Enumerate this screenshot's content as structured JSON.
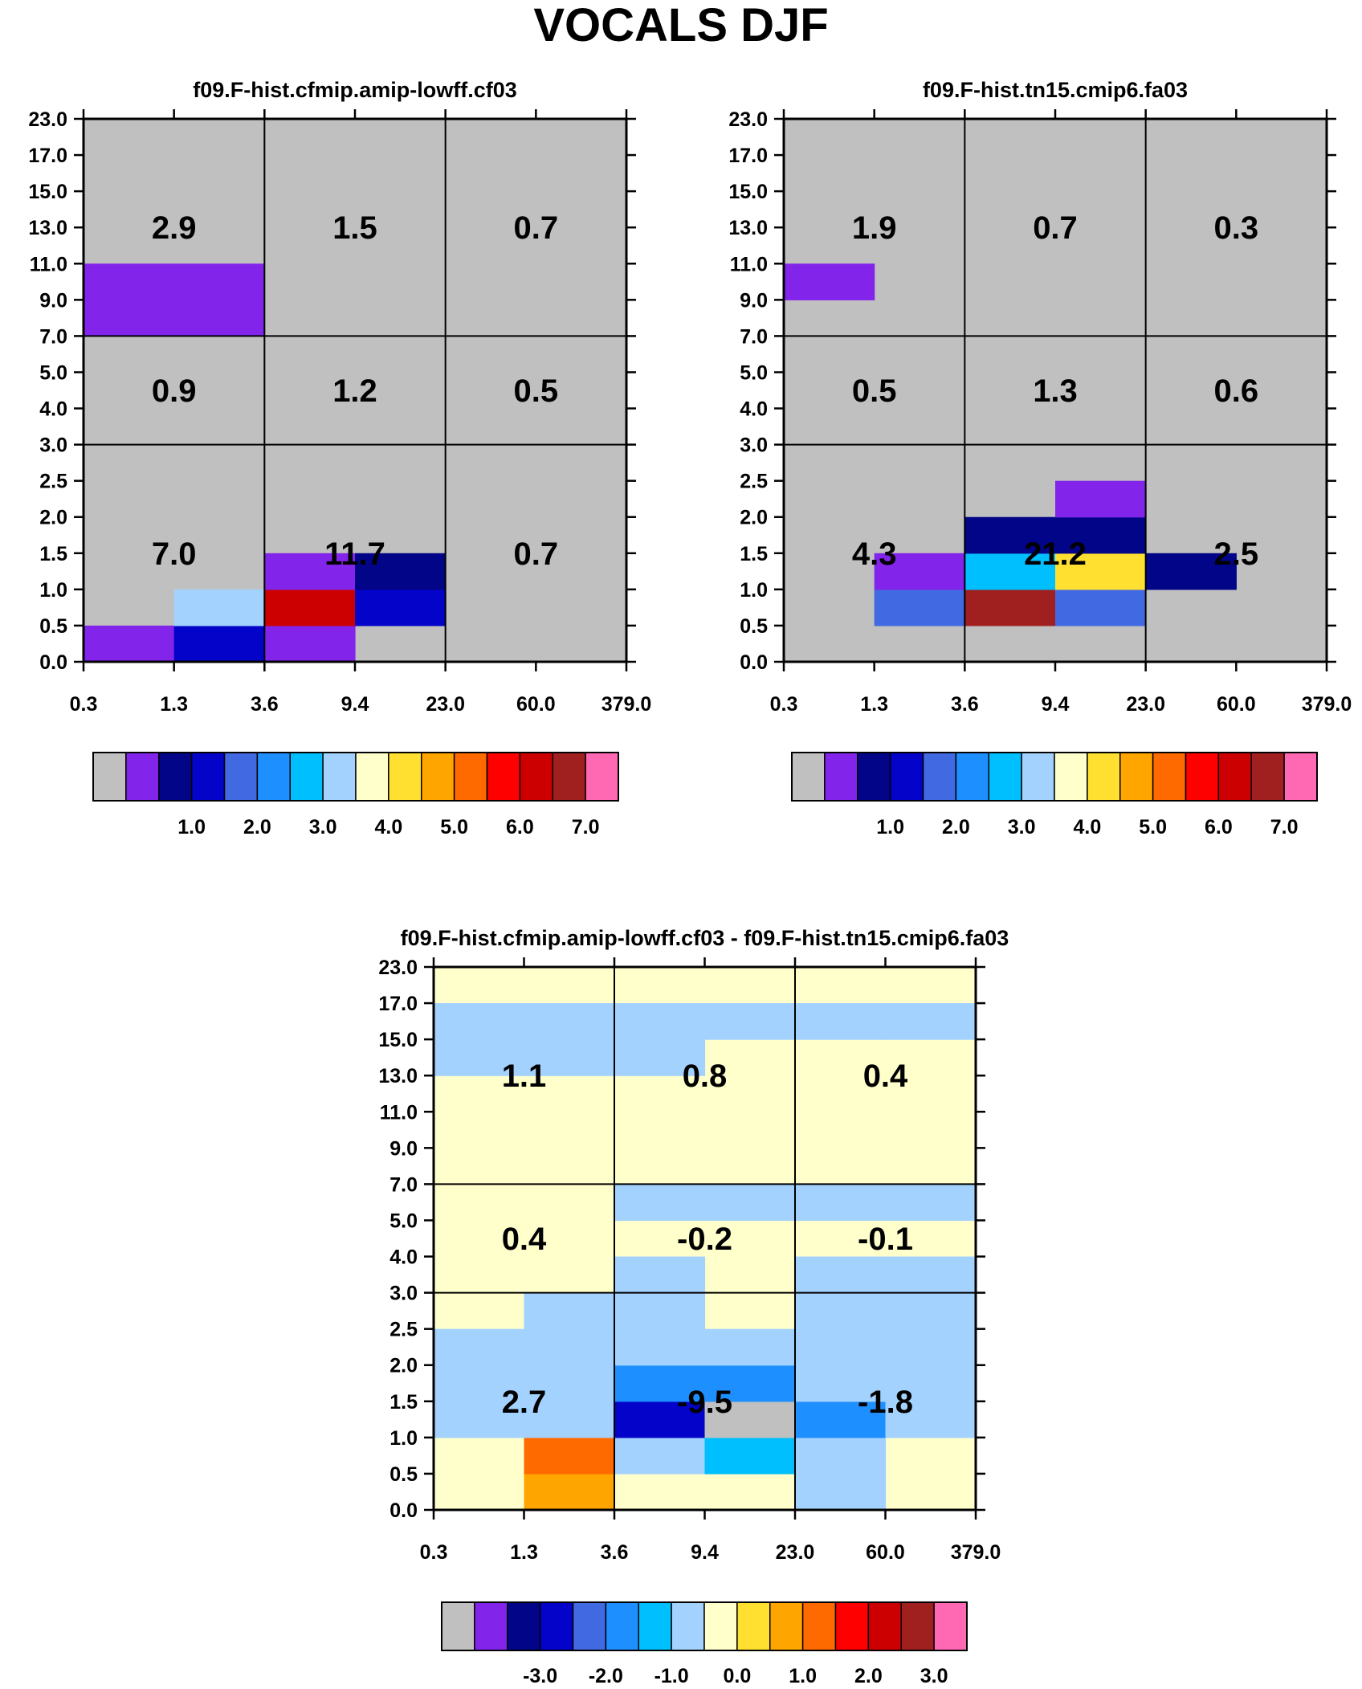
{
  "figure": {
    "title": "VOCALS DJF"
  },
  "axes": {
    "x_ticks": [
      "0.3",
      "1.3",
      "3.6",
      "9.4",
      "23.0",
      "60.0",
      "379.0"
    ],
    "y_ticks": [
      "0.0",
      "0.5",
      "1.0",
      "1.5",
      "2.0",
      "2.5",
      "3.0",
      "4.0",
      "5.0",
      "7.0",
      "9.0",
      "11.0",
      "13.0",
      "15.0",
      "17.0",
      "23.0"
    ]
  },
  "colors": {
    "missing": "#c0c0c0",
    "palette": [
      "#c0c0c0",
      "#8224ea",
      "#020587",
      "#0303c9",
      "#4169e1",
      "#1e8fff",
      "#00bfff",
      "#a3d2ff",
      "#ffffcc",
      "#ffe030",
      "#ffa500",
      "#ff6a00",
      "#ff0000",
      "#cc0000",
      "#a02020",
      "#ff69b4"
    ]
  },
  "chart_data": [
    {
      "type": "heatmap",
      "title": "f09.F-hist.cfmip.amip-lowff.cf03",
      "colorbar_labels": [
        "1.0",
        "2.0",
        "3.0",
        "4.0",
        "5.0",
        "6.0",
        "7.0"
      ],
      "cells": [
        {
          "x": 0,
          "y": 0,
          "c": 1
        },
        {
          "x": 1,
          "y": 0,
          "c": 3
        },
        {
          "x": 2,
          "y": 0,
          "c": 1
        },
        {
          "x": 1,
          "y": 1,
          "c": 7
        },
        {
          "x": 2,
          "y": 1,
          "c": 13
        },
        {
          "x": 3,
          "y": 1,
          "c": 3
        },
        {
          "x": 2,
          "y": 2,
          "c": 1
        },
        {
          "x": 3,
          "y": 2,
          "c": 2
        },
        {
          "x": 0,
          "y": 9,
          "c": 1
        },
        {
          "x": 1,
          "y": 9,
          "c": 1
        },
        {
          "x": 0,
          "y": 10,
          "c": 1
        },
        {
          "x": 1,
          "y": 10,
          "c": 1
        }
      ],
      "group_values": [
        {
          "col": 0,
          "row": 0,
          "value": "7.0"
        },
        {
          "col": 1,
          "row": 0,
          "value": "11.7"
        },
        {
          "col": 2,
          "row": 0,
          "value": "0.7"
        },
        {
          "col": 0,
          "row": 1,
          "value": "0.9"
        },
        {
          "col": 1,
          "row": 1,
          "value": "1.2"
        },
        {
          "col": 2,
          "row": 1,
          "value": "0.5"
        },
        {
          "col": 0,
          "row": 2,
          "value": "2.9"
        },
        {
          "col": 1,
          "row": 2,
          "value": "1.5"
        },
        {
          "col": 2,
          "row": 2,
          "value": "0.7"
        }
      ]
    },
    {
      "type": "heatmap",
      "title": "f09.F-hist.tn15.cmip6.fa03",
      "colorbar_labels": [
        "1.0",
        "2.0",
        "3.0",
        "4.0",
        "5.0",
        "6.0",
        "7.0"
      ],
      "cells": [
        {
          "x": 1,
          "y": 1,
          "c": 4
        },
        {
          "x": 2,
          "y": 1,
          "c": 14
        },
        {
          "x": 3,
          "y": 1,
          "c": 4
        },
        {
          "x": 1,
          "y": 2,
          "c": 1
        },
        {
          "x": 2,
          "y": 2,
          "c": 6
        },
        {
          "x": 3,
          "y": 2,
          "c": 9
        },
        {
          "x": 4,
          "y": 2,
          "c": 2
        },
        {
          "x": 2,
          "y": 3,
          "c": 2
        },
        {
          "x": 3,
          "y": 3,
          "c": 2
        },
        {
          "x": 3,
          "y": 4,
          "c": 1
        },
        {
          "x": 0,
          "y": 10,
          "c": 1
        }
      ],
      "group_values": [
        {
          "col": 0,
          "row": 0,
          "value": "4.3"
        },
        {
          "col": 1,
          "row": 0,
          "value": "21.2"
        },
        {
          "col": 2,
          "row": 0,
          "value": "2.5"
        },
        {
          "col": 0,
          "row": 1,
          "value": "0.5"
        },
        {
          "col": 1,
          "row": 1,
          "value": "1.3"
        },
        {
          "col": 2,
          "row": 1,
          "value": "0.6"
        },
        {
          "col": 0,
          "row": 2,
          "value": "1.9"
        },
        {
          "col": 1,
          "row": 2,
          "value": "0.7"
        },
        {
          "col": 2,
          "row": 2,
          "value": "0.3"
        }
      ]
    },
    {
      "type": "heatmap",
      "title": "f09.F-hist.cfmip.amip-lowff.cf03 - f09.F-hist.tn15.cmip6.fa03",
      "colorbar_labels": [
        "-3.0",
        "-2.0",
        "-1.0",
        "0.0",
        "1.0",
        "2.0",
        "3.0"
      ],
      "base_color_index": 8,
      "cells": [
        {
          "x": 1,
          "y": 0,
          "c": 10
        },
        {
          "x": 4,
          "y": 0,
          "c": 7
        },
        {
          "x": 1,
          "y": 1,
          "c": 11
        },
        {
          "x": 2,
          "y": 1,
          "c": 7
        },
        {
          "x": 3,
          "y": 1,
          "c": 6
        },
        {
          "x": 4,
          "y": 1,
          "c": 7
        },
        {
          "x": 0,
          "y": 2,
          "c": 7
        },
        {
          "x": 1,
          "y": 2,
          "c": 7
        },
        {
          "x": 2,
          "y": 2,
          "c": 3
        },
        {
          "x": 3,
          "y": 2,
          "c": 0
        },
        {
          "x": 4,
          "y": 2,
          "c": 5
        },
        {
          "x": 5,
          "y": 2,
          "c": 7
        },
        {
          "x": 0,
          "y": 3,
          "c": 7
        },
        {
          "x": 1,
          "y": 3,
          "c": 7
        },
        {
          "x": 2,
          "y": 3,
          "c": 5
        },
        {
          "x": 3,
          "y": 3,
          "c": 5
        },
        {
          "x": 4,
          "y": 3,
          "c": 7
        },
        {
          "x": 5,
          "y": 3,
          "c": 7
        },
        {
          "x": 0,
          "y": 4,
          "c": 7
        },
        {
          "x": 1,
          "y": 4,
          "c": 7
        },
        {
          "x": 2,
          "y": 4,
          "c": 7
        },
        {
          "x": 3,
          "y": 4,
          "c": 7
        },
        {
          "x": 4,
          "y": 4,
          "c": 7
        },
        {
          "x": 5,
          "y": 4,
          "c": 7
        },
        {
          "x": 1,
          "y": 5,
          "c": 7
        },
        {
          "x": 2,
          "y": 5,
          "c": 7
        },
        {
          "x": 4,
          "y": 5,
          "c": 7
        },
        {
          "x": 5,
          "y": 5,
          "c": 7
        },
        {
          "x": 2,
          "y": 6,
          "c": 7
        },
        {
          "x": 4,
          "y": 6,
          "c": 7
        },
        {
          "x": 5,
          "y": 6,
          "c": 7
        },
        {
          "x": 2,
          "y": 8,
          "c": 7
        },
        {
          "x": 3,
          "y": 8,
          "c": 7
        },
        {
          "x": 4,
          "y": 8,
          "c": 7
        },
        {
          "x": 5,
          "y": 8,
          "c": 7
        },
        {
          "x": 0,
          "y": 12,
          "c": 7
        },
        {
          "x": 1,
          "y": 12,
          "c": 7
        },
        {
          "x": 2,
          "y": 12,
          "c": 7
        },
        {
          "x": 0,
          "y": 13,
          "c": 7
        },
        {
          "x": 1,
          "y": 13,
          "c": 7
        },
        {
          "x": 2,
          "y": 13,
          "c": 7
        },
        {
          "x": 3,
          "y": 13,
          "c": 7
        },
        {
          "x": 4,
          "y": 13,
          "c": 7
        },
        {
          "x": 5,
          "y": 13,
          "c": 7
        }
      ],
      "group_values": [
        {
          "col": 0,
          "row": 0,
          "value": "2.7"
        },
        {
          "col": 1,
          "row": 0,
          "value": "-9.5"
        },
        {
          "col": 2,
          "row": 0,
          "value": "-1.8"
        },
        {
          "col": 0,
          "row": 1,
          "value": "0.4"
        },
        {
          "col": 1,
          "row": 1,
          "value": "-0.2"
        },
        {
          "col": 2,
          "row": 1,
          "value": "-0.1"
        },
        {
          "col": 0,
          "row": 2,
          "value": "1.1"
        },
        {
          "col": 1,
          "row": 2,
          "value": "0.8"
        },
        {
          "col": 2,
          "row": 2,
          "value": "0.4"
        }
      ]
    }
  ]
}
